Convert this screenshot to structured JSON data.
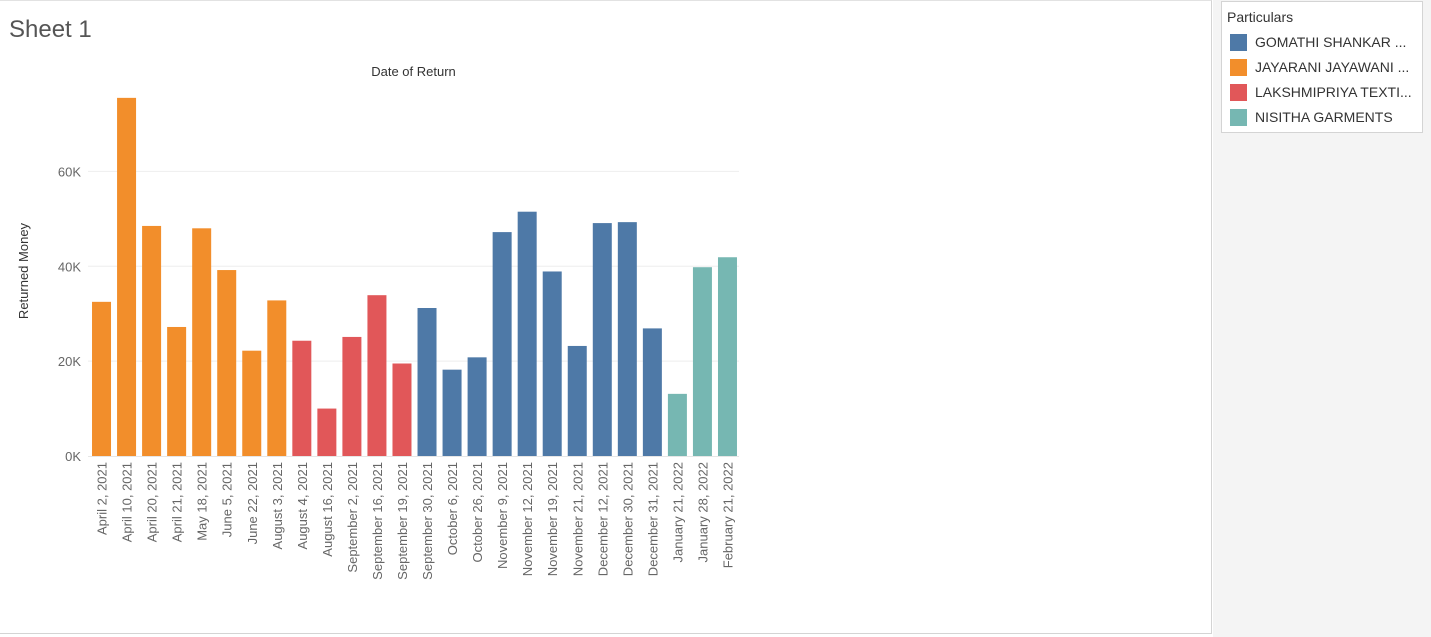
{
  "sheet": {
    "title": "Sheet 1"
  },
  "legend": {
    "title": "Particulars",
    "items": [
      {
        "label": "GOMATHI SHANKAR ...",
        "color": "#4e79a7"
      },
      {
        "label": "JAYARANI JAYAWANI ...",
        "color": "#f28e2b"
      },
      {
        "label": "LAKSHMIPRIYA TEXTI...",
        "color": "#e15759"
      },
      {
        "label": "NISITHA GARMENTS",
        "color": "#76b7b2"
      }
    ]
  },
  "chart_data": {
    "type": "bar",
    "title": "Date of Return",
    "xlabel": "",
    "ylabel": "Returned Money",
    "ylim": [
      0,
      78000
    ],
    "yticks": [
      0,
      20000,
      40000,
      60000
    ],
    "ytick_labels": [
      "0K",
      "20K",
      "40K",
      "60K"
    ],
    "grid": true,
    "legend_position": "top-right",
    "categories": [
      "April 2, 2021",
      "April 10, 2021",
      "April 20, 2021",
      "April 21, 2021",
      "May 18, 2021",
      "June 5, 2021",
      "June 22, 2021",
      "August 3, 2021",
      "August 4, 2021",
      "August 16, 2021",
      "September 2, 2021",
      "September 16, 2021",
      "September 19, 2021",
      "September 30, 2021",
      "October 6, 2021",
      "October 26, 2021",
      "November 9, 2021",
      "November 12, 2021",
      "November 19, 2021",
      "November 21, 2021",
      "December 12, 2021",
      "December 30, 2021",
      "December 31, 2021",
      "January 21, 2022",
      "January 28, 2022",
      "February 21, 2022"
    ],
    "values": [
      32500,
      75500,
      48500,
      27200,
      48000,
      39200,
      22200,
      32800,
      24300,
      10000,
      25100,
      33900,
      19500,
      31200,
      18200,
      20800,
      47200,
      51500,
      38900,
      23200,
      49100,
      49300,
      26900,
      13100,
      39800,
      41900
    ],
    "series_index": [
      1,
      1,
      1,
      1,
      1,
      1,
      1,
      1,
      2,
      2,
      2,
      2,
      2,
      0,
      0,
      0,
      0,
      0,
      0,
      0,
      0,
      0,
      0,
      3,
      3,
      3
    ]
  }
}
